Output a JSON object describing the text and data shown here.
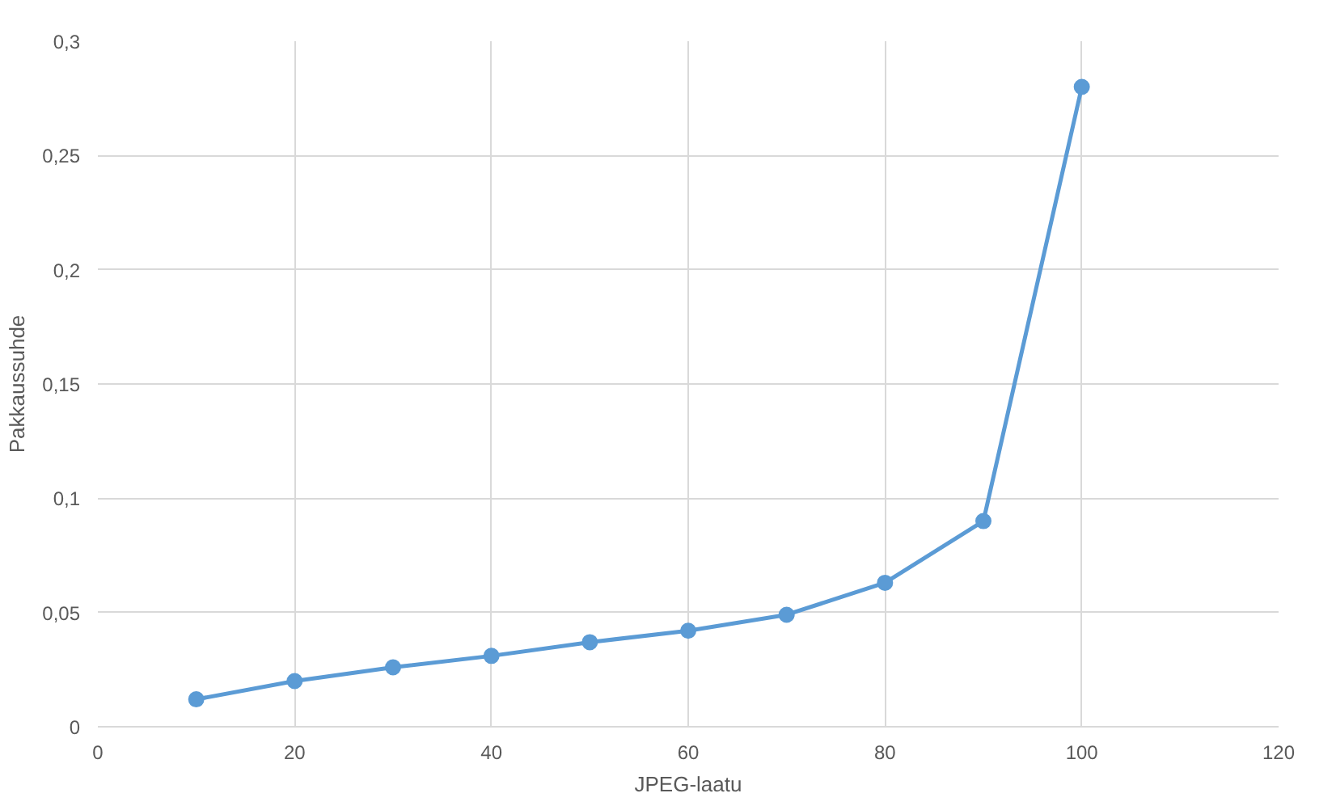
{
  "chart_data": {
    "type": "line",
    "xlabel": "JPEG-laatu",
    "ylabel": "Pakkaussuhde",
    "x": [
      10,
      20,
      30,
      40,
      50,
      60,
      70,
      80,
      90,
      100
    ],
    "series": [
      {
        "color": "#5b9bd5",
        "values": [
          0.012,
          0.02,
          0.026,
          0.031,
          0.037,
          0.042,
          0.049,
          0.063,
          0.09,
          0.28
        ]
      }
    ],
    "xlim": [
      0,
      120
    ],
    "xticks": [
      0,
      20,
      40,
      60,
      80,
      100,
      120
    ],
    "ylim": [
      0,
      0.3
    ],
    "yticks": [
      {
        "value": 0,
        "label": "0"
      },
      {
        "value": 0.05,
        "label": "0,05"
      },
      {
        "value": 0.1,
        "label": "0,1"
      },
      {
        "value": 0.15,
        "label": "0,15"
      },
      {
        "value": 0.2,
        "label": "0,2"
      },
      {
        "value": 0.25,
        "label": "0,25"
      },
      {
        "value": 0.3,
        "label": "0,3"
      }
    ],
    "grid": true,
    "marker": "circle",
    "line_style": "solid"
  }
}
